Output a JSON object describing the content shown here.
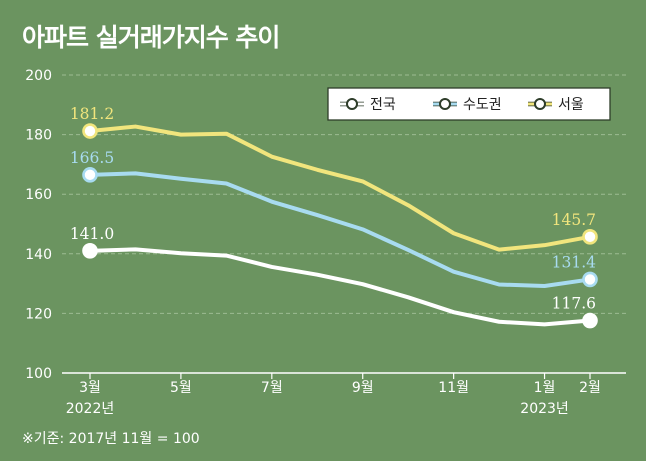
{
  "title": "아파트 실거래가지수 추이",
  "note": "※기준: 2017년 11월 = 100",
  "colors": {
    "background": "#6b9460",
    "전국": "#ffffff",
    "수도권": "#a8dbf0",
    "서울": "#f1e57d"
  },
  "chart_data": {
    "type": "line",
    "title": "아파트 실거래가지수 추이",
    "x": [
      "3월",
      "4월",
      "5월",
      "6월",
      "7월",
      "8월",
      "9월",
      "10월",
      "11월",
      "12월",
      "1월",
      "2월"
    ],
    "x_tick_labels": [
      {
        "index": 0,
        "label": "3월",
        "sub": "2022년"
      },
      {
        "index": 2,
        "label": "5월",
        "sub": ""
      },
      {
        "index": 4,
        "label": "7월",
        "sub": ""
      },
      {
        "index": 6,
        "label": "9월",
        "sub": ""
      },
      {
        "index": 8,
        "label": "11월",
        "sub": ""
      },
      {
        "index": 10,
        "label": "1월",
        "sub": "2023년"
      },
      {
        "index": 11,
        "label": "2월",
        "sub": ""
      }
    ],
    "ylim": [
      100,
      200
    ],
    "yticks": [
      100,
      120,
      140,
      160,
      180,
      200
    ],
    "grid": true,
    "legend_position": "top-right",
    "series": [
      {
        "name": "전국",
        "color": "#ffffff",
        "values": [
          141.0,
          141.5,
          140.2,
          139.4,
          135.6,
          133.0,
          129.8,
          125.4,
          120.4,
          117.2,
          116.3,
          117.6
        ],
        "labels": [
          {
            "index": 0,
            "text": "141.0"
          },
          {
            "index": 11,
            "text": "117.6"
          }
        ]
      },
      {
        "name": "수도권",
        "color": "#a8dbf0",
        "values": [
          166.5,
          167.0,
          165.2,
          163.6,
          157.5,
          153.0,
          148.2,
          141.3,
          134.0,
          129.7,
          129.2,
          131.4
        ],
        "labels": [
          {
            "index": 0,
            "text": "166.5"
          },
          {
            "index": 11,
            "text": "131.4"
          }
        ]
      },
      {
        "name": "서울",
        "color": "#f1e57d",
        "values": [
          181.2,
          182.7,
          180.0,
          180.3,
          172.6,
          168.2,
          164.3,
          156.3,
          146.9,
          141.4,
          142.9,
          145.7
        ],
        "labels": [
          {
            "index": 0,
            "text": "181.2"
          },
          {
            "index": 11,
            "text": "145.7"
          }
        ]
      }
    ]
  }
}
